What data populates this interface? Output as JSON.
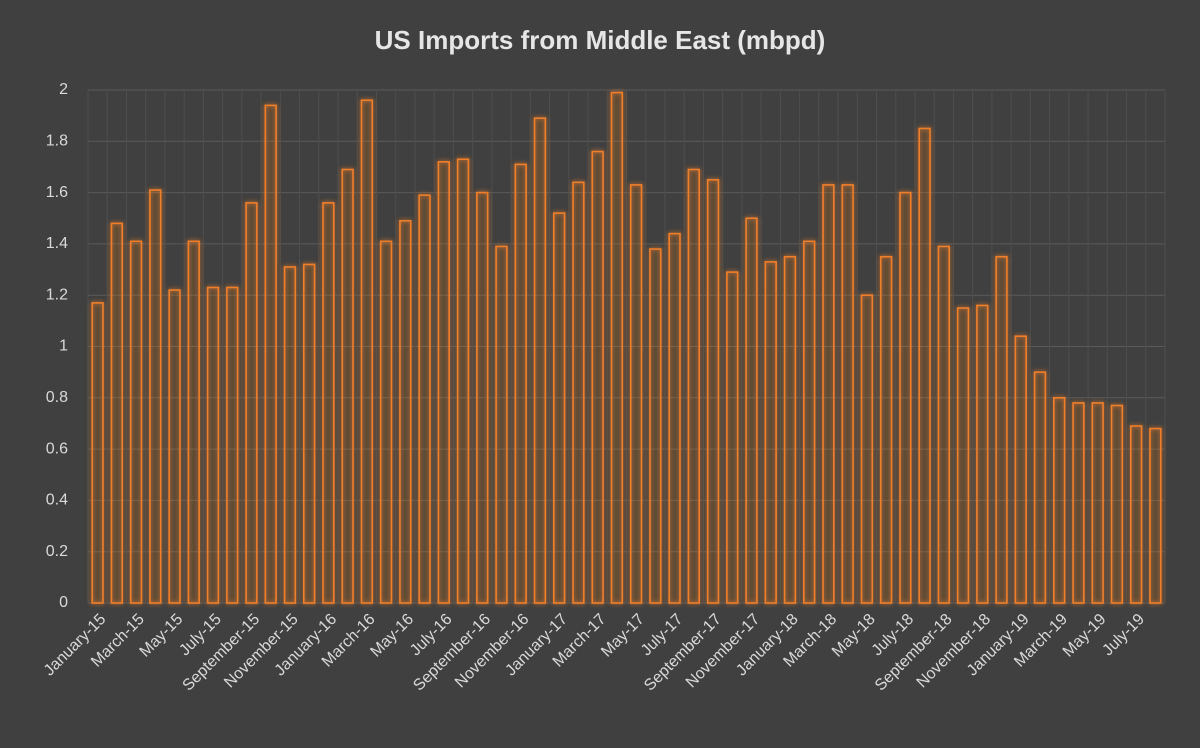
{
  "chart_data": {
    "type": "bar",
    "title": "US Imports from Middle East (mbpd)",
    "categories": [
      "January-15",
      null,
      "March-15",
      null,
      "May-15",
      null,
      "July-15",
      null,
      "September-15",
      null,
      "November-15",
      null,
      "January-16",
      null,
      "March-16",
      null,
      "May-16",
      null,
      "July-16",
      null,
      "September-16",
      null,
      "November-16",
      null,
      "January-17",
      null,
      "March-17",
      null,
      "May-17",
      null,
      "July-17",
      null,
      "September-17",
      null,
      "November-17",
      null,
      "January-18",
      null,
      "March-18",
      null,
      "May-18",
      null,
      "July-18",
      null,
      "September-18",
      null,
      "November-18",
      null,
      "January-19",
      null,
      "March-19",
      null,
      "May-19",
      null,
      "July-19",
      null
    ],
    "values": [
      1.17,
      1.48,
      1.41,
      1.61,
      1.22,
      1.41,
      1.23,
      1.23,
      1.56,
      1.94,
      1.31,
      1.32,
      1.56,
      1.69,
      1.96,
      1.41,
      1.49,
      1.59,
      1.72,
      1.73,
      1.6,
      1.39,
      1.71,
      1.89,
      1.52,
      1.64,
      1.76,
      1.99,
      1.63,
      1.38,
      1.44,
      1.69,
      1.65,
      1.29,
      1.5,
      1.33,
      1.35,
      1.41,
      1.63,
      1.63,
      1.2,
      1.35,
      1.6,
      1.85,
      1.39,
      1.15,
      1.16,
      1.35,
      1.04,
      0.9,
      0.8,
      0.78,
      0.78,
      0.77,
      0.69,
      0.68
    ],
    "color": "#f07f2a",
    "ylim": [
      0,
      2
    ],
    "yticks": [
      0,
      0.2,
      0.4,
      0.6,
      0.8,
      1,
      1.2,
      1.4,
      1.6,
      1.8,
      2
    ],
    "grid": true
  }
}
